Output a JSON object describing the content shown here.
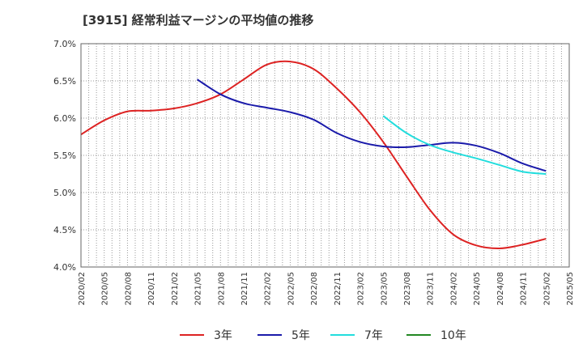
{
  "chart_data": {
    "type": "line",
    "title": "[3915]  経常利益マージンの平均値の推移",
    "xlabel": "",
    "ylabel": "",
    "x_categories": [
      "2020/02",
      "2020/05",
      "2020/08",
      "2020/11",
      "2021/02",
      "2021/05",
      "2021/08",
      "2021/11",
      "2022/02",
      "2022/05",
      "2022/08",
      "2022/11",
      "2023/02",
      "2023/05",
      "2023/08",
      "2023/11",
      "2024/02",
      "2024/05",
      "2024/08",
      "2024/11",
      "2025/02",
      "2025/05"
    ],
    "ylim": [
      4.0,
      7.0
    ],
    "yticks": [
      4.0,
      4.5,
      5.0,
      5.5,
      6.0,
      6.5,
      7.0
    ],
    "ytick_labels": [
      "4.0%",
      "4.5%",
      "5.0%",
      "5.5%",
      "6.0%",
      "6.5%",
      "7.0%"
    ],
    "grid": true,
    "legend_position": "bottom",
    "series": [
      {
        "name": "3年",
        "color": "#dd2222",
        "points": [
          [
            "2020/02",
            5.78
          ],
          [
            "2020/05",
            5.97
          ],
          [
            "2020/08",
            6.09
          ],
          [
            "2020/11",
            6.1
          ],
          [
            "2021/02",
            6.13
          ],
          [
            "2021/05",
            6.2
          ],
          [
            "2021/08",
            6.32
          ],
          [
            "2021/11",
            6.52
          ],
          [
            "2022/02",
            6.72
          ],
          [
            "2022/05",
            6.76
          ],
          [
            "2022/08",
            6.66
          ],
          [
            "2022/11",
            6.4
          ],
          [
            "2023/02",
            6.08
          ],
          [
            "2023/05",
            5.68
          ],
          [
            "2023/08",
            5.22
          ],
          [
            "2023/11",
            4.77
          ],
          [
            "2024/02",
            4.44
          ],
          [
            "2024/05",
            4.29
          ],
          [
            "2024/08",
            4.25
          ],
          [
            "2024/11",
            4.3
          ],
          [
            "2025/02",
            4.38
          ]
        ]
      },
      {
        "name": "5年",
        "color": "#1a1aaa",
        "points": [
          [
            "2021/05",
            6.52
          ],
          [
            "2021/08",
            6.32
          ],
          [
            "2021/11",
            6.2
          ],
          [
            "2022/02",
            6.14
          ],
          [
            "2022/05",
            6.08
          ],
          [
            "2022/08",
            5.98
          ],
          [
            "2022/11",
            5.8
          ],
          [
            "2023/02",
            5.68
          ],
          [
            "2023/05",
            5.62
          ],
          [
            "2023/08",
            5.61
          ],
          [
            "2023/11",
            5.64
          ],
          [
            "2024/02",
            5.67
          ],
          [
            "2024/05",
            5.63
          ],
          [
            "2024/08",
            5.53
          ],
          [
            "2024/11",
            5.39
          ],
          [
            "2025/02",
            5.29
          ]
        ]
      },
      {
        "name": "7年",
        "color": "#22dddd",
        "points": [
          [
            "2023/05",
            6.03
          ],
          [
            "2023/08",
            5.8
          ],
          [
            "2023/11",
            5.64
          ],
          [
            "2024/02",
            5.54
          ],
          [
            "2024/05",
            5.46
          ],
          [
            "2024/08",
            5.37
          ],
          [
            "2024/11",
            5.28
          ],
          [
            "2025/02",
            5.25
          ]
        ]
      },
      {
        "name": "10年",
        "color": "#228822",
        "points": []
      }
    ]
  }
}
